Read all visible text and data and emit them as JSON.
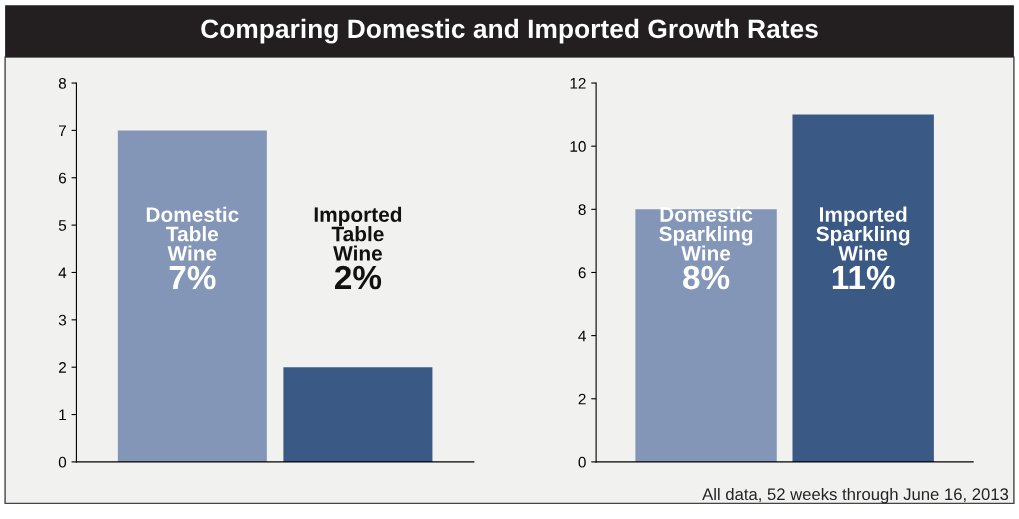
{
  "chart_data": [
    {
      "type": "bar",
      "title": "Comparing Domestic and Imported Growth Rates",
      "categories": [
        "Domestic Table Wine",
        "Imported Table Wine"
      ],
      "values": [
        7,
        2
      ],
      "colors": [
        "#8496b8",
        "#3a5a85"
      ],
      "value_labels": [
        "7%",
        "2%"
      ],
      "ylim": [
        0,
        8
      ],
      "yticks": [
        0,
        1,
        2,
        3,
        4,
        5,
        6,
        7,
        8
      ],
      "grid": false,
      "legend": false
    },
    {
      "type": "bar",
      "categories": [
        "Domestic Sparkling Wine",
        "Imported Sparkling Wine"
      ],
      "values": [
        8,
        11
      ],
      "colors": [
        "#8496b8",
        "#3a5a85"
      ],
      "value_labels": [
        "8%",
        "11%"
      ],
      "ylim": [
        0,
        12
      ],
      "yticks": [
        0,
        2,
        4,
        6,
        8,
        10,
        12
      ],
      "grid": false,
      "legend": false,
      "annotations": [
        "All data, 52 weeks through June 16, 2013"
      ]
    }
  ]
}
